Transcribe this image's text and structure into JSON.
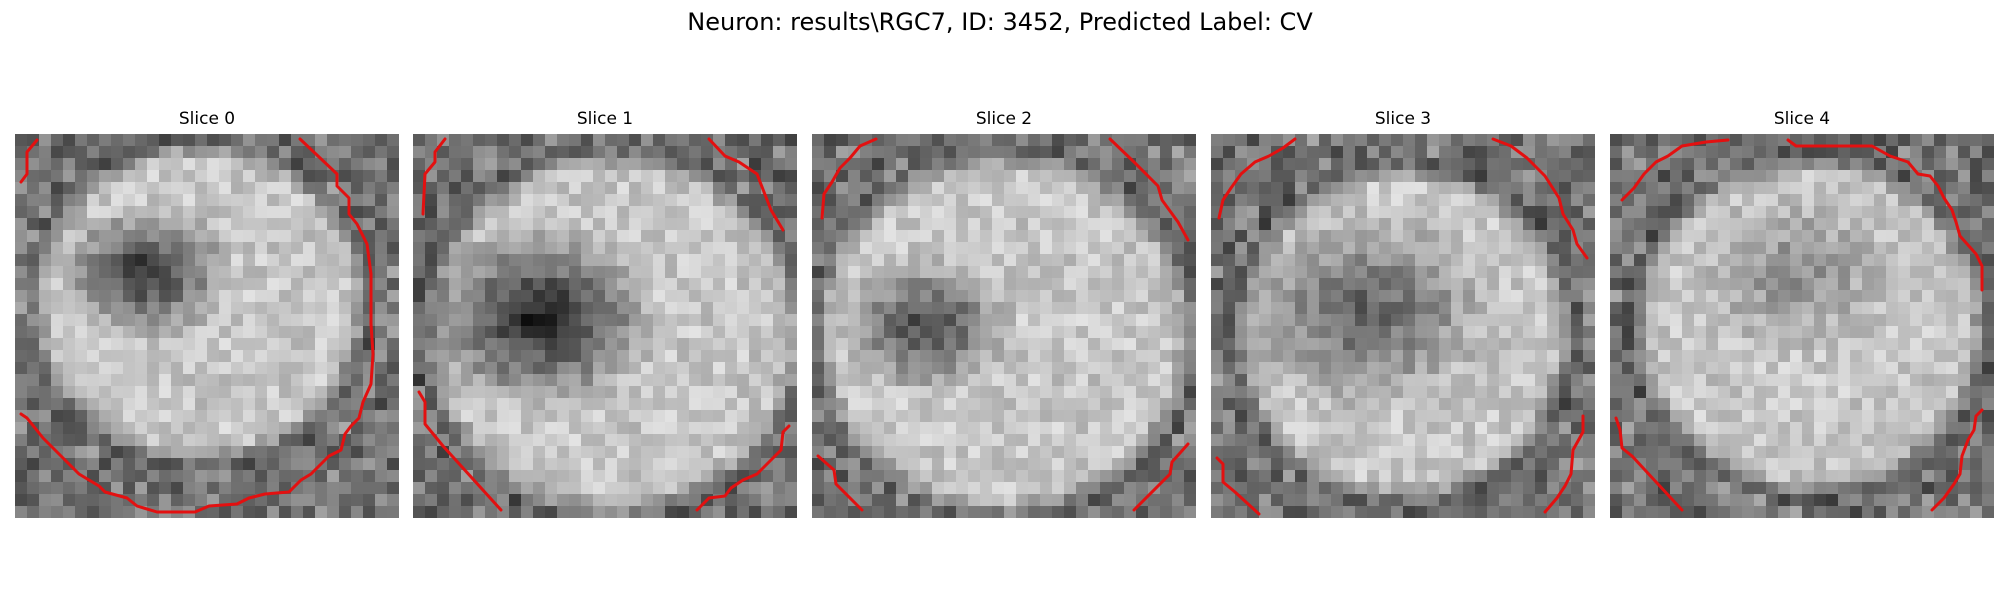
{
  "figure": {
    "title": "Neuron: results\\RGC7, ID: 3452, Predicted Label: CV",
    "contour_color": "#e31010"
  },
  "slices": [
    {
      "label": "Slice 0"
    },
    {
      "label": "Slice 1"
    },
    {
      "label": "Slice 2"
    },
    {
      "label": "Slice 3"
    },
    {
      "label": "Slice 4"
    }
  ]
}
